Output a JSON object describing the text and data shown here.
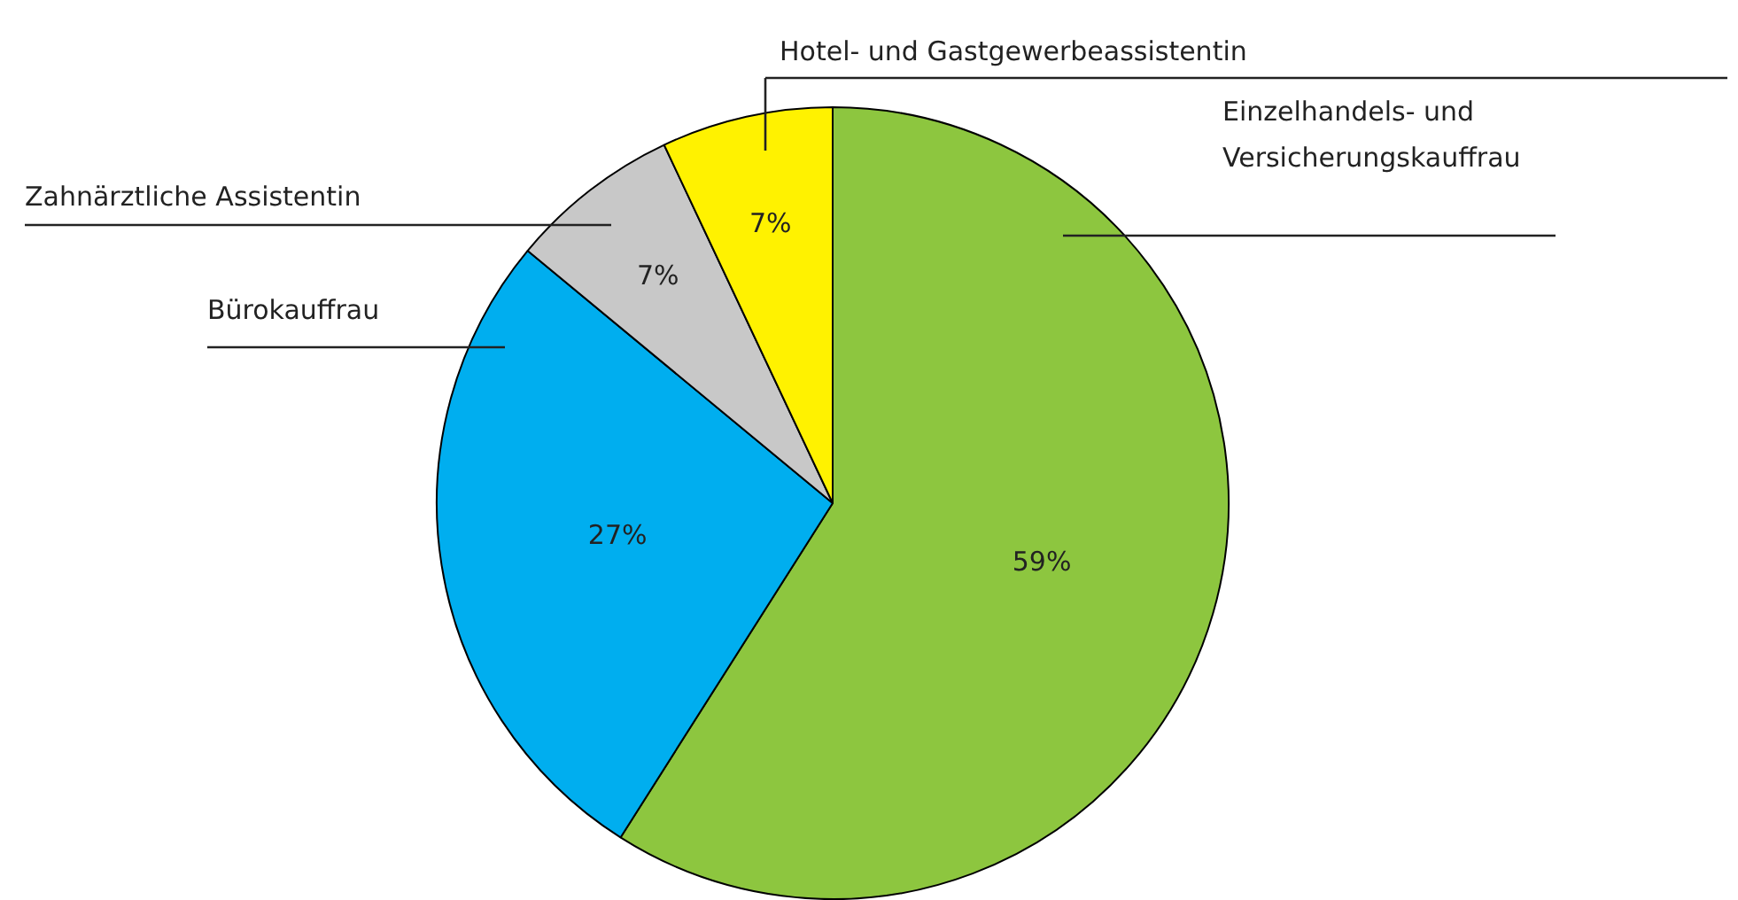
{
  "chart_data": {
    "type": "pie",
    "categories": [
      "Einzelhandels- und Versicherungskauffrau",
      "Bürokauffrau",
      "Zahnärztliche Assistentin",
      "Hotel- und Gastgewerbeassistentin"
    ],
    "values": [
      59,
      27,
      7,
      7
    ],
    "colors": [
      "#8dc63f",
      "#00aeef",
      "#c8c8c8",
      "#fff200"
    ],
    "value_labels": [
      "59%",
      "27%",
      "7%",
      "7%"
    ]
  }
}
